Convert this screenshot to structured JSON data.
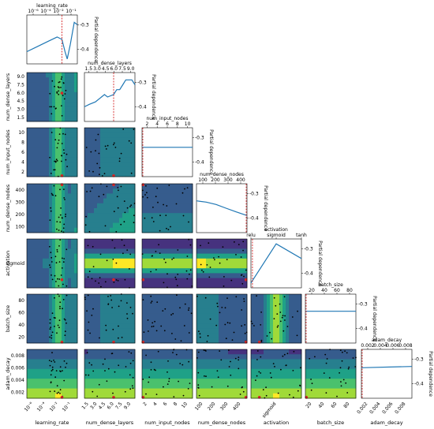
{
  "chart_data": {
    "type": "heatmap",
    "title": "",
    "parameters": [
      {
        "name": "learning_rate",
        "label": "learning_rate",
        "log": true,
        "range": [
          1e-06,
          0.1
        ],
        "ticks": [
          "10⁻⁶",
          "10⁻⁴",
          "10⁻²",
          "10⁻¹"
        ],
        "best": 0.003
      },
      {
        "name": "num_dense_layers",
        "label": "num_dense_layers",
        "range": [
          1.2,
          9.5
        ],
        "ticks": [
          "1.5",
          "3.0",
          "4.5",
          "6.0",
          "7.5",
          "9.0"
        ],
        "best": 6.0
      },
      {
        "name": "num_input_nodes",
        "label": "num_input_nodes",
        "range": [
          1,
          11.5
        ],
        "ticks": [
          "2",
          "4",
          "6",
          "8",
          "10"
        ],
        "best": 1.0
      },
      {
        "name": "num_dense_nodes",
        "label": "num_dense_nodes",
        "range": [
          1,
          512
        ],
        "ticks": [
          "100",
          "200",
          "300",
          "400"
        ],
        "best": 512
      },
      {
        "name": "activation",
        "label": "activation",
        "categorical": true,
        "categories": [
          "relu",
          "sigmoid",
          "tanh"
        ],
        "best": "relu"
      },
      {
        "name": "batch_size",
        "label": "batch_size",
        "range": [
          1,
          100
        ],
        "ticks": [
          "20",
          "40",
          "60",
          "80"
        ],
        "best": 1
      },
      {
        "name": "adam_decay",
        "label": "adam_decay",
        "range": [
          0,
          0.01
        ],
        "ticks": [
          "0.002",
          "0.004",
          "0.006",
          "0.008"
        ],
        "best": 0.0
      }
    ],
    "diagonal_ylabel": "Partial dependence",
    "diagonal_yticks": [
      "-0.3",
      "-0.4"
    ],
    "diagonal_curves": [
      {
        "param": "learning_rate",
        "x": [
          1e-06,
          1e-05,
          0.0001,
          0.001,
          0.003,
          0.006,
          0.01,
          0.02,
          0.05,
          0.1
        ],
        "y": [
          -0.41,
          -0.39,
          -0.37,
          -0.35,
          -0.36,
          -0.41,
          -0.44,
          -0.38,
          -0.29,
          -0.3
        ]
      },
      {
        "param": "num_dense_layers",
        "x": [
          1.2,
          2,
          3,
          4,
          4.5,
          5,
          6,
          6.5,
          7,
          7.5,
          8,
          9,
          9.5
        ],
        "y": [
          -0.4,
          -0.39,
          -0.38,
          -0.36,
          -0.35,
          -0.36,
          -0.35,
          -0.33,
          -0.33,
          -0.31,
          -0.29,
          -0.29,
          -0.31
        ]
      },
      {
        "param": "num_input_nodes",
        "x": [
          1,
          11.5
        ],
        "y": [
          -0.34,
          -0.34
        ]
      },
      {
        "param": "num_dense_nodes",
        "x": [
          1,
          100,
          200,
          300,
          400,
          512
        ],
        "y": [
          -0.33,
          -0.335,
          -0.345,
          -0.36,
          -0.375,
          -0.39
        ]
      },
      {
        "param": "activation",
        "x": [
          "relu",
          "sigmoid",
          "tanh"
        ],
        "y": [
          -0.44,
          -0.28,
          -0.34
        ]
      },
      {
        "param": "batch_size",
        "x": [
          1,
          100
        ],
        "y": [
          -0.33,
          -0.33
        ]
      },
      {
        "param": "adam_decay",
        "x": [
          0,
          0.01
        ],
        "y": [
          -0.335,
          -0.33
        ]
      }
    ]
  },
  "colors": {
    "curve": "#1f77b4",
    "best_line": "#d62728",
    "points": "#000000",
    "colormap": [
      "#440154",
      "#46327e",
      "#365c8d",
      "#277f8e",
      "#1fa187",
      "#4ac16d",
      "#a0da39",
      "#fde725"
    ]
  }
}
